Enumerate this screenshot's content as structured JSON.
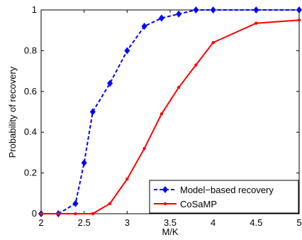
{
  "chart_data": {
    "type": "line",
    "xlabel": "M/K",
    "ylabel": "Probability of recovery",
    "xlim": [
      2,
      5
    ],
    "ylim": [
      0,
      1
    ],
    "xticks": [
      "2",
      "2.5",
      "3",
      "3.5",
      "4",
      "4.5",
      "5"
    ],
    "yticks": [
      "0",
      "0.2",
      "0.4",
      "0.6",
      "0.8",
      "1"
    ],
    "grid": false,
    "legend_position": "bottom-right",
    "series": [
      {
        "name": "Model−based recovery",
        "color": "#0000ff",
        "line_style": "dashed",
        "marker": "diamond",
        "x": [
          2.0,
          2.2,
          2.4,
          2.5,
          2.6,
          2.8,
          3.0,
          3.2,
          3.4,
          3.6,
          3.8,
          4.0,
          4.5,
          5.0
        ],
        "y": [
          0.0,
          0.0,
          0.05,
          0.25,
          0.5,
          0.64,
          0.8,
          0.92,
          0.96,
          0.98,
          1.0,
          1.0,
          1.0,
          1.0
        ]
      },
      {
        "name": "CoSaMP",
        "color": "#ff0000",
        "line_style": "solid",
        "marker": "point",
        "x": [
          2.0,
          2.2,
          2.4,
          2.6,
          2.8,
          3.0,
          3.2,
          3.4,
          3.6,
          3.8,
          4.0,
          4.5,
          5.0
        ],
        "y": [
          0.0,
          0.0,
          0.0,
          0.0,
          0.05,
          0.17,
          0.32,
          0.49,
          0.62,
          0.73,
          0.84,
          0.935,
          0.95
        ]
      }
    ]
  }
}
